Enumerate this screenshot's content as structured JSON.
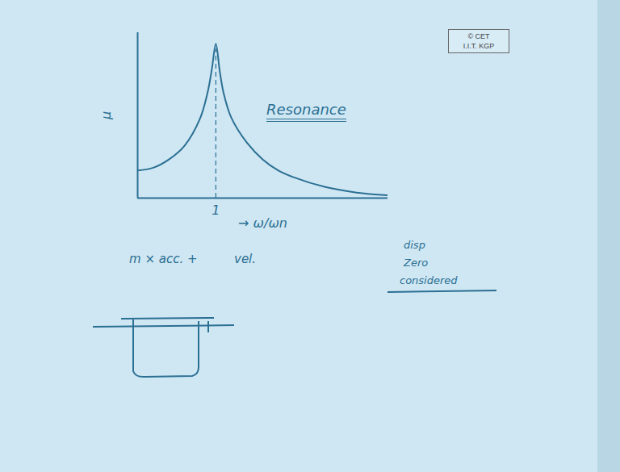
{
  "chart_data": {
    "type": "line",
    "title": "Resonance",
    "x_label": "→ ω/ωn",
    "y_label": "μ",
    "x": [
      0,
      0.2,
      0.4,
      0.6,
      0.8,
      0.9,
      0.95,
      1.0,
      1.05,
      1.1,
      1.2,
      1.4,
      1.6,
      1.8,
      2.0,
      2.4,
      2.8,
      3.2
    ],
    "values": [
      1.0,
      1.1,
      1.4,
      1.9,
      2.9,
      3.9,
      4.7,
      5.6,
      4.6,
      3.8,
      2.9,
      2.0,
      1.4,
      1.0,
      0.75,
      0.4,
      0.2,
      0.1
    ],
    "xlim": [
      0,
      3.2
    ],
    "ylim": [
      0,
      6
    ],
    "xticks": [
      {
        "value": 1,
        "label": "1"
      }
    ],
    "yticks": [],
    "tick_labels": "x",
    "grid": false,
    "color": "#2b6f93",
    "line_style": "solid",
    "annotations": [
      "m × acc. +",
      "vel.",
      "disp",
      "Zero",
      "considered"
    ],
    "watermark": [
      "© CET",
      "I.I.T. KGP"
    ]
  }
}
